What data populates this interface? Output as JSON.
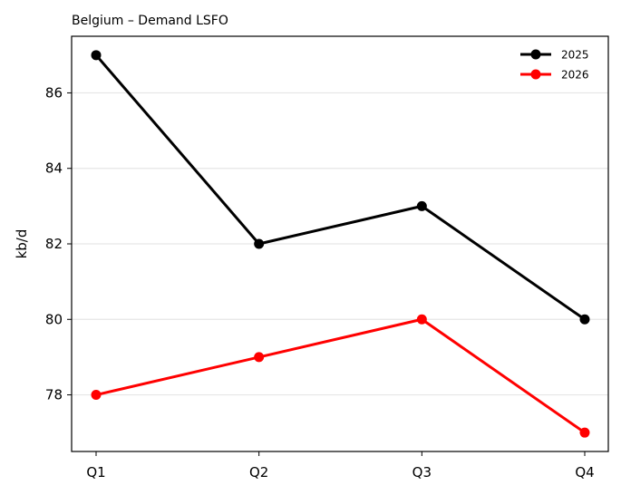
{
  "chart_data": {
    "type": "line",
    "title": "Belgium – Demand LSFO",
    "xlabel": "",
    "ylabel": "kb/d",
    "categories": [
      "Q1",
      "Q2",
      "Q3",
      "Q4"
    ],
    "series": [
      {
        "name": "2025",
        "values": [
          87,
          82,
          83,
          80
        ],
        "color": "#000000"
      },
      {
        "name": "2026",
        "values": [
          78,
          79,
          80,
          77
        ],
        "color": "#ff0000"
      }
    ],
    "ylim": [
      76.5,
      87.5
    ],
    "yticks": [
      78,
      80,
      82,
      84,
      86
    ],
    "grid": "horizontal",
    "legend": "top-right"
  }
}
